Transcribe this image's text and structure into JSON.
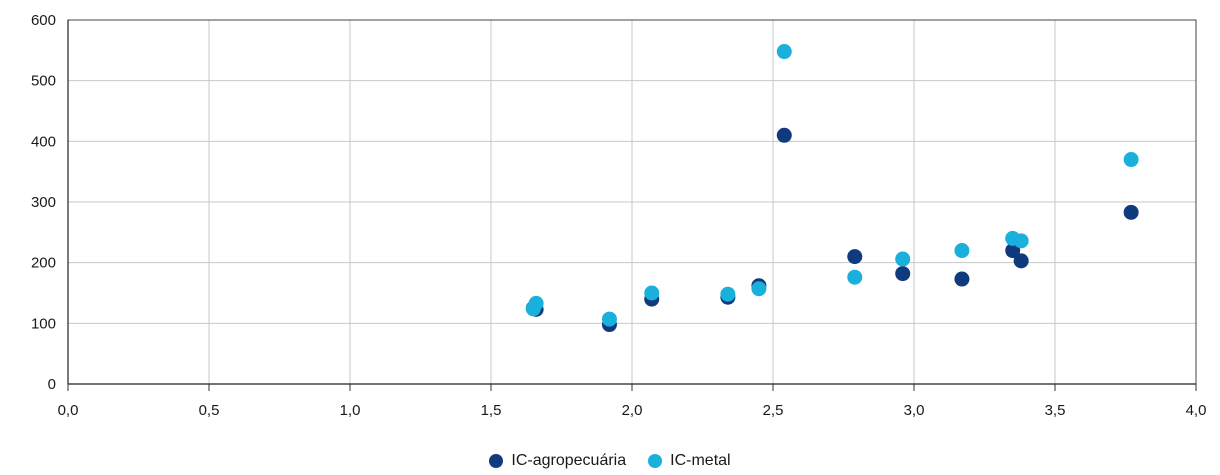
{
  "chart_data": {
    "type": "scatter",
    "title": "",
    "xlabel": "",
    "ylabel": "",
    "xlim": [
      0,
      4
    ],
    "ylim": [
      0,
      600
    ],
    "x_ticks": [
      "0,0",
      "0,5",
      "1,0",
      "1,5",
      "2,0",
      "2,5",
      "3,0",
      "3,5",
      "4,0"
    ],
    "y_ticks": [
      "0",
      "100",
      "200",
      "300",
      "400",
      "500",
      "600"
    ],
    "grid": true,
    "legend_position": "bottom-center",
    "series": [
      {
        "name": "IC-agropecuária",
        "color": "#0f3a7d",
        "points": [
          [
            1.65,
            125
          ],
          [
            1.66,
            123
          ],
          [
            1.92,
            98
          ],
          [
            2.07,
            140
          ],
          [
            2.34,
            143
          ],
          [
            2.45,
            162
          ],
          [
            2.54,
            410
          ],
          [
            2.79,
            210
          ],
          [
            2.96,
            182
          ],
          [
            3.17,
            173
          ],
          [
            3.35,
            220
          ],
          [
            3.38,
            203
          ],
          [
            3.77,
            283
          ]
        ]
      },
      {
        "name": "IC-metal",
        "color": "#1ab0dc",
        "points": [
          [
            1.65,
            124
          ],
          [
            1.66,
            133
          ],
          [
            1.92,
            107
          ],
          [
            2.07,
            150
          ],
          [
            2.34,
            148
          ],
          [
            2.45,
            157
          ],
          [
            2.54,
            548
          ],
          [
            2.79,
            176
          ],
          [
            2.96,
            206
          ],
          [
            3.17,
            220
          ],
          [
            3.35,
            240
          ],
          [
            3.38,
            236
          ],
          [
            3.77,
            370
          ]
        ]
      }
    ]
  }
}
